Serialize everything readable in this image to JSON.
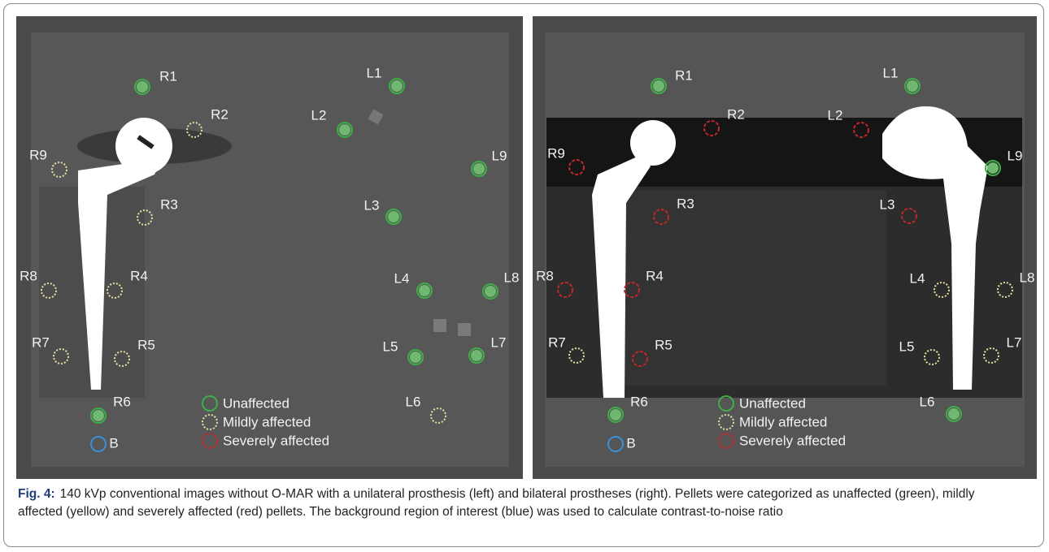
{
  "figure": {
    "panels": [
      {
        "markers": [
          {
            "label": "R1",
            "color": "#3fae49"
          },
          {
            "label": "R2",
            "color": "#e8e0a0"
          },
          {
            "label": "R9",
            "color": "#e8e0a0"
          },
          {
            "label": "R3",
            "color": "#e8e0a0"
          },
          {
            "label": "R8",
            "color": "#e8e0a0"
          },
          {
            "label": "R4",
            "color": "#e8e0a0"
          },
          {
            "label": "R7",
            "color": "#e8e0a0"
          },
          {
            "label": "R5",
            "color": "#e8e0a0"
          },
          {
            "label": "R6",
            "color": "#3fae49"
          },
          {
            "label": "B",
            "color": "#3a8fd9"
          },
          {
            "label": "L1",
            "color": "#3fae49"
          },
          {
            "label": "L2",
            "color": "#3fae49"
          },
          {
            "label": "L9",
            "color": "#3fae49"
          },
          {
            "label": "L3",
            "color": "#3fae49"
          },
          {
            "label": "L4",
            "color": "#3fae49"
          },
          {
            "label": "L8",
            "color": "#3fae49"
          },
          {
            "label": "L5",
            "color": "#3fae49"
          },
          {
            "label": "L7",
            "color": "#3fae49"
          },
          {
            "label": "L6",
            "color": "#e8e0a0"
          }
        ]
      },
      {
        "markers": [
          {
            "label": "R1",
            "color": "#3fae49"
          },
          {
            "label": "R2",
            "color": "#c0282a"
          },
          {
            "label": "R9",
            "color": "#c0282a"
          },
          {
            "label": "R3",
            "color": "#c0282a"
          },
          {
            "label": "R8",
            "color": "#c0282a"
          },
          {
            "label": "R4",
            "color": "#c0282a"
          },
          {
            "label": "R7",
            "color": "#e8e0a0"
          },
          {
            "label": "R5",
            "color": "#c0282a"
          },
          {
            "label": "R6",
            "color": "#3fae49"
          },
          {
            "label": "B",
            "color": "#3a8fd9"
          },
          {
            "label": "L1",
            "color": "#3fae49"
          },
          {
            "label": "L2",
            "color": "#c0282a"
          },
          {
            "label": "L9",
            "color": "#3fae49"
          },
          {
            "label": "L3",
            "color": "#c0282a"
          },
          {
            "label": "L4",
            "color": "#e8e0a0"
          },
          {
            "label": "L8",
            "color": "#e8e0a0"
          },
          {
            "label": "L5",
            "color": "#e8e0a0"
          },
          {
            "label": "L7",
            "color": "#e8e0a0"
          },
          {
            "label": "L6",
            "color": "#3fae49"
          }
        ]
      }
    ],
    "legend": [
      {
        "label": "Unaffected",
        "color": "#3fae49"
      },
      {
        "label": "Mildly affected",
        "color": "#e8e0a0"
      },
      {
        "label": "Severely affected",
        "color": "#c0282a"
      }
    ]
  },
  "caption": {
    "label": "Fig. 4:",
    "text": "140 kVp conventional images without O-MAR with a unilateral prosthesis (left) and bilateral prostheses (right). Pellets were categorized as unaffected (green), mildly affected (yellow) and severely affected (red) pellets. The background region of interest (blue) was used to calculate contrast-to-noise ratio"
  }
}
